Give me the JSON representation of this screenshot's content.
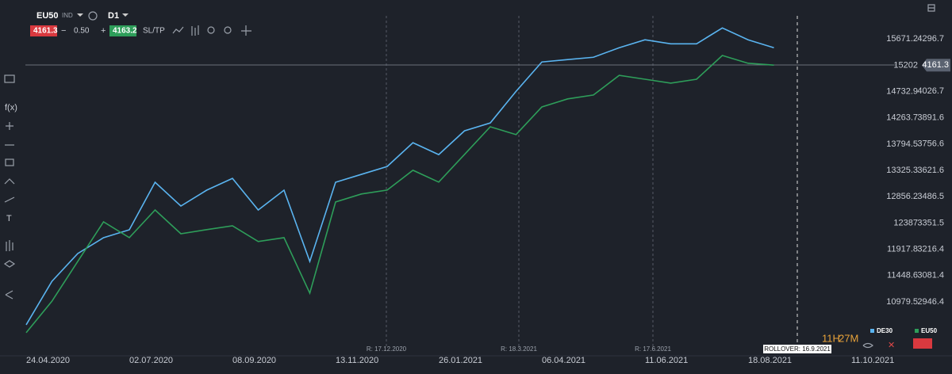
{
  "ui": {
    "symbol": "EU50",
    "symbol_type": "IND",
    "interval": "D1",
    "bid": "4161.3",
    "spread": "0.50",
    "ask": "4163.2",
    "sltp": "SL/TP",
    "toolbar_fx": "f(x)",
    "toolbar_text": "T",
    "countdown_hours": "11H",
    "countdown_minutes": "27M",
    "rollovers": [
      "R: 17.12.2020",
      "R: 18.3.2021",
      "R: 17.6.2021",
      "ROLLOVER: 16.9.2021"
    ]
  },
  "chart_data": {
    "type": "line",
    "categories": [
      "24.04.2020",
      null,
      null,
      null,
      "02.07.2020",
      null,
      null,
      null,
      "08.09.2020",
      null,
      null,
      null,
      "13.11.2020",
      null,
      null,
      null,
      "26.01.2021",
      null,
      null,
      null,
      "06.04.2021",
      null,
      null,
      null,
      "11.06.2021",
      null,
      null,
      null,
      "18.08.2021",
      null,
      null,
      null,
      "11.10.2021"
    ],
    "series": [
      {
        "name": "DE30",
        "color": "#5ab4f0",
        "values": [
          10570,
          11347,
          11842,
          12125,
          12266,
          13114,
          12690,
          12973,
          13184,
          12619,
          12973,
          11701,
          13114,
          13255,
          13396,
          13820,
          13608,
          14032,
          14173,
          14738,
          15261,
          15304,
          15346,
          15516,
          15657,
          15586,
          15586,
          15869,
          15657,
          15516,
          null,
          null,
          null
        ]
      },
      {
        "name": "EU50",
        "color": "#2e9e5a",
        "axis": "y2",
        "values": [
          2788,
          2950,
          3154,
          3357,
          3276,
          3418,
          3296,
          3317,
          3337,
          3256,
          3276,
          2991,
          3459,
          3500,
          3520,
          3622,
          3561,
          3703,
          3845,
          3805,
          3947,
          3988,
          4008,
          4109,
          4089,
          4069,
          4089,
          4211,
          4171,
          4161.3,
          null,
          null,
          null
        ]
      }
    ],
    "ylim": [
      10300,
      16000
    ],
    "yticks": [
      15671.2,
      15202.0,
      14732.9,
      14263.7,
      13794.5,
      13325.3,
      12856.2,
      12387.0,
      11917.8,
      11448.6,
      10979.5
    ],
    "y2lim": [
      2751,
      4390
    ],
    "y2ticks": [
      4296.7,
      4026.7,
      3891.6,
      3756.6,
      3621.6,
      3486.5,
      3351.5,
      3216.4,
      3081.4,
      2946.4
    ],
    "last_price": 4161.3
  }
}
